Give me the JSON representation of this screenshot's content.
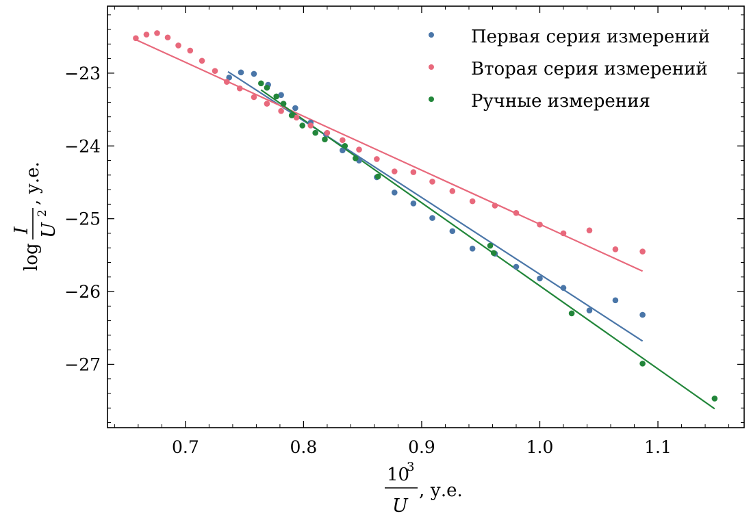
{
  "chart_data": {
    "type": "scatter",
    "title": "",
    "xlabel": {
      "numerator": "10",
      "exponent": "3",
      "denominator": "U",
      "suffix": ", у.е."
    },
    "ylabel": {
      "prefix": "log",
      "numerator": "I",
      "denominator": "U",
      "exponent": "2",
      "suffix": ", у.е."
    },
    "xlim": [
      0.634,
      1.173
    ],
    "ylim": [
      -27.87,
      -22.08
    ],
    "xticks": [
      0.7,
      0.8,
      0.9,
      1.0,
      1.1
    ],
    "xtick_labels": [
      "0.7",
      "0.8",
      "0.9",
      "1.0",
      "1.1"
    ],
    "yticks": [
      -23,
      -24,
      -25,
      -26,
      -27
    ],
    "ytick_labels": [
      "−23",
      "−24",
      "−25",
      "−26",
      "−27"
    ],
    "grid": false,
    "legend_position": "top-right",
    "series": [
      {
        "name": "Первая серия измерений",
        "color": "#4a76a8",
        "points": [
          [
            0.737,
            -23.06
          ],
          [
            0.747,
            -22.99
          ],
          [
            0.758,
            -23.01
          ],
          [
            0.77,
            -23.16
          ],
          [
            0.781,
            -23.3
          ],
          [
            0.793,
            -23.48
          ],
          [
            0.806,
            -23.68
          ],
          [
            0.819,
            -23.84
          ],
          [
            0.833,
            -24.06
          ],
          [
            0.847,
            -24.2
          ],
          [
            0.862,
            -24.43
          ],
          [
            0.877,
            -24.64
          ],
          [
            0.893,
            -24.79
          ],
          [
            0.909,
            -24.99
          ],
          [
            0.926,
            -25.17
          ],
          [
            0.943,
            -25.41
          ],
          [
            0.962,
            -25.48
          ],
          [
            0.98,
            -25.66
          ],
          [
            1.0,
            -25.82
          ],
          [
            1.02,
            -25.95
          ],
          [
            1.042,
            -26.26
          ],
          [
            1.064,
            -26.12
          ],
          [
            1.087,
            -26.32
          ]
        ],
        "fit": [
          [
            0.736,
            -22.98
          ],
          [
            1.087,
            -26.68
          ]
        ]
      },
      {
        "name": "Вторая серия измерений",
        "color": "#e8697c",
        "points": [
          [
            0.658,
            -22.52
          ],
          [
            0.667,
            -22.47
          ],
          [
            0.676,
            -22.45
          ],
          [
            0.685,
            -22.51
          ],
          [
            0.694,
            -22.62
          ],
          [
            0.704,
            -22.69
          ],
          [
            0.714,
            -22.83
          ],
          [
            0.725,
            -22.97
          ],
          [
            0.735,
            -23.12
          ],
          [
            0.746,
            -23.21
          ],
          [
            0.758,
            -23.33
          ],
          [
            0.769,
            -23.42
          ],
          [
            0.781,
            -23.52
          ],
          [
            0.794,
            -23.61
          ],
          [
            0.806,
            -23.72
          ],
          [
            0.82,
            -23.82
          ],
          [
            0.833,
            -23.92
          ],
          [
            0.847,
            -24.05
          ],
          [
            0.862,
            -24.18
          ],
          [
            0.877,
            -24.35
          ],
          [
            0.893,
            -24.36
          ],
          [
            0.909,
            -24.49
          ],
          [
            0.926,
            -24.62
          ],
          [
            0.943,
            -24.76
          ],
          [
            0.962,
            -24.82
          ],
          [
            0.98,
            -24.92
          ],
          [
            1.0,
            -25.08
          ],
          [
            1.02,
            -25.2
          ],
          [
            1.042,
            -25.16
          ],
          [
            1.064,
            -25.42
          ],
          [
            1.087,
            -25.45
          ]
        ],
        "fit": [
          [
            0.658,
            -22.54
          ],
          [
            1.087,
            -25.72
          ]
        ]
      },
      {
        "name": "Ручные измерения",
        "color": "#22863a",
        "points": [
          [
            0.764,
            -23.14
          ],
          [
            0.769,
            -23.2
          ],
          [
            0.777,
            -23.32
          ],
          [
            0.783,
            -23.42
          ],
          [
            0.79,
            -23.58
          ],
          [
            0.799,
            -23.72
          ],
          [
            0.81,
            -23.82
          ],
          [
            0.818,
            -23.91
          ],
          [
            0.835,
            -24.0
          ],
          [
            0.844,
            -24.17
          ],
          [
            0.863,
            -24.42
          ],
          [
            0.958,
            -25.37
          ],
          [
            0.961,
            -25.47
          ],
          [
            1.027,
            -26.3
          ],
          [
            1.087,
            -26.99
          ],
          [
            1.148,
            -27.47
          ]
        ],
        "fit": [
          [
            0.764,
            -23.23
          ],
          [
            1.148,
            -27.61
          ]
        ]
      }
    ]
  }
}
